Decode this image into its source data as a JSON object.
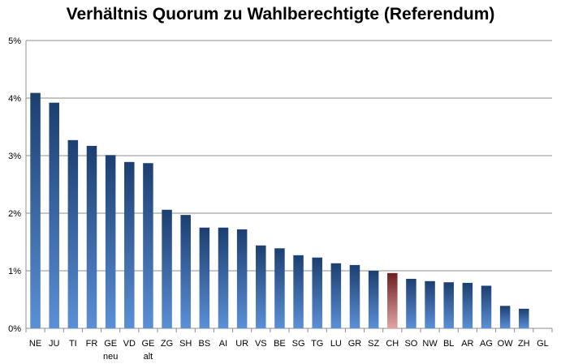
{
  "chart_data": {
    "type": "bar",
    "title": "Verhältnis Quorum zu Wahlberechtigte (Referendum)",
    "xlabel": "",
    "ylabel": "",
    "ylim": [
      0,
      5
    ],
    "y_ticks": [
      0,
      1,
      2,
      3,
      4,
      5
    ],
    "y_tick_labels": [
      "0%",
      "1%",
      "2%",
      "3%",
      "4%",
      "5%"
    ],
    "grid": true,
    "legend": "none",
    "categories": [
      [
        "NE"
      ],
      [
        "JU"
      ],
      [
        "TI"
      ],
      [
        "FR"
      ],
      [
        "GE",
        "neu"
      ],
      [
        "VD"
      ],
      [
        "GE",
        "alt"
      ],
      [
        "ZG"
      ],
      [
        "SH"
      ],
      [
        "BS"
      ],
      [
        "AI"
      ],
      [
        "UR"
      ],
      [
        "VS"
      ],
      [
        "BE"
      ],
      [
        "SG"
      ],
      [
        "TG"
      ],
      [
        "LU"
      ],
      [
        "GR"
      ],
      [
        "SZ"
      ],
      [
        "CH"
      ],
      [
        "SO"
      ],
      [
        "NW"
      ],
      [
        "BL"
      ],
      [
        "AR"
      ],
      [
        "AG"
      ],
      [
        "OW"
      ],
      [
        "ZH"
      ],
      [
        "GL"
      ]
    ],
    "values": [
      4.09,
      3.92,
      3.27,
      3.17,
      3.01,
      2.89,
      2.87,
      2.06,
      1.97,
      1.75,
      1.75,
      1.72,
      1.44,
      1.39,
      1.27,
      1.23,
      1.13,
      1.1,
      1.0,
      0.96,
      0.86,
      0.82,
      0.8,
      0.79,
      0.74,
      0.39,
      0.34,
      0
    ],
    "highlight_category": "CH",
    "colors": {
      "bar_top": "#1c3f70",
      "bar_bottom": "#5b8fd6",
      "highlight_top": "#6d1f1f",
      "highlight_bottom": "#e3a3a3",
      "grid": "#8c8c8c",
      "axis": "#8c8c8c"
    }
  }
}
